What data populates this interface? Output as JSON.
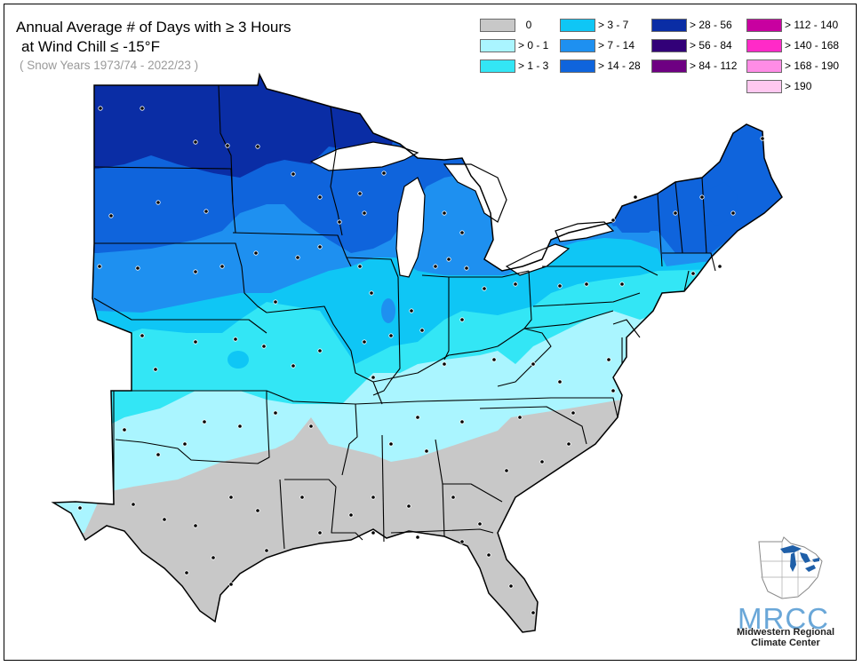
{
  "title_line1": "Annual Average # of Days with ≥ 3 Hours",
  "title_line2": "at Wind Chill ≤ -15°F",
  "subtitle": "( Snow Years 1973/74 - 2022/23 )",
  "legend": [
    {
      "label": "0",
      "color": "#c8c8c8"
    },
    {
      "label": "> 0 - 1",
      "color": "#aaf5ff"
    },
    {
      "label": "> 1 - 3",
      "color": "#33e6f5"
    },
    {
      "label": "> 3 - 7",
      "color": "#0fc6f5"
    },
    {
      "label": "> 7 - 14",
      "color": "#1e90f0"
    },
    {
      "label": "> 14 - 28",
      "color": "#0f64dc"
    },
    {
      "label": "> 28 - 56",
      "color": "#0a2da5"
    },
    {
      "label": "> 56 - 84",
      "color": "#320078"
    },
    {
      "label": "> 84 - 112",
      "color": "#6e0082"
    },
    {
      "label": "> 112 - 140",
      "color": "#c800a0"
    },
    {
      "label": "> 140 - 168",
      "color": "#ff2ac8"
    },
    {
      "label": "> 168 - 190",
      "color": "#ff8ce6"
    },
    {
      "label": "> 190",
      "color": "#ffc8f0"
    }
  ],
  "logo": {
    "abbr": "MRCC",
    "line1": "Midwestern Regional",
    "line2": "Climate Center",
    "accent_color": "#6aa7d8"
  }
}
